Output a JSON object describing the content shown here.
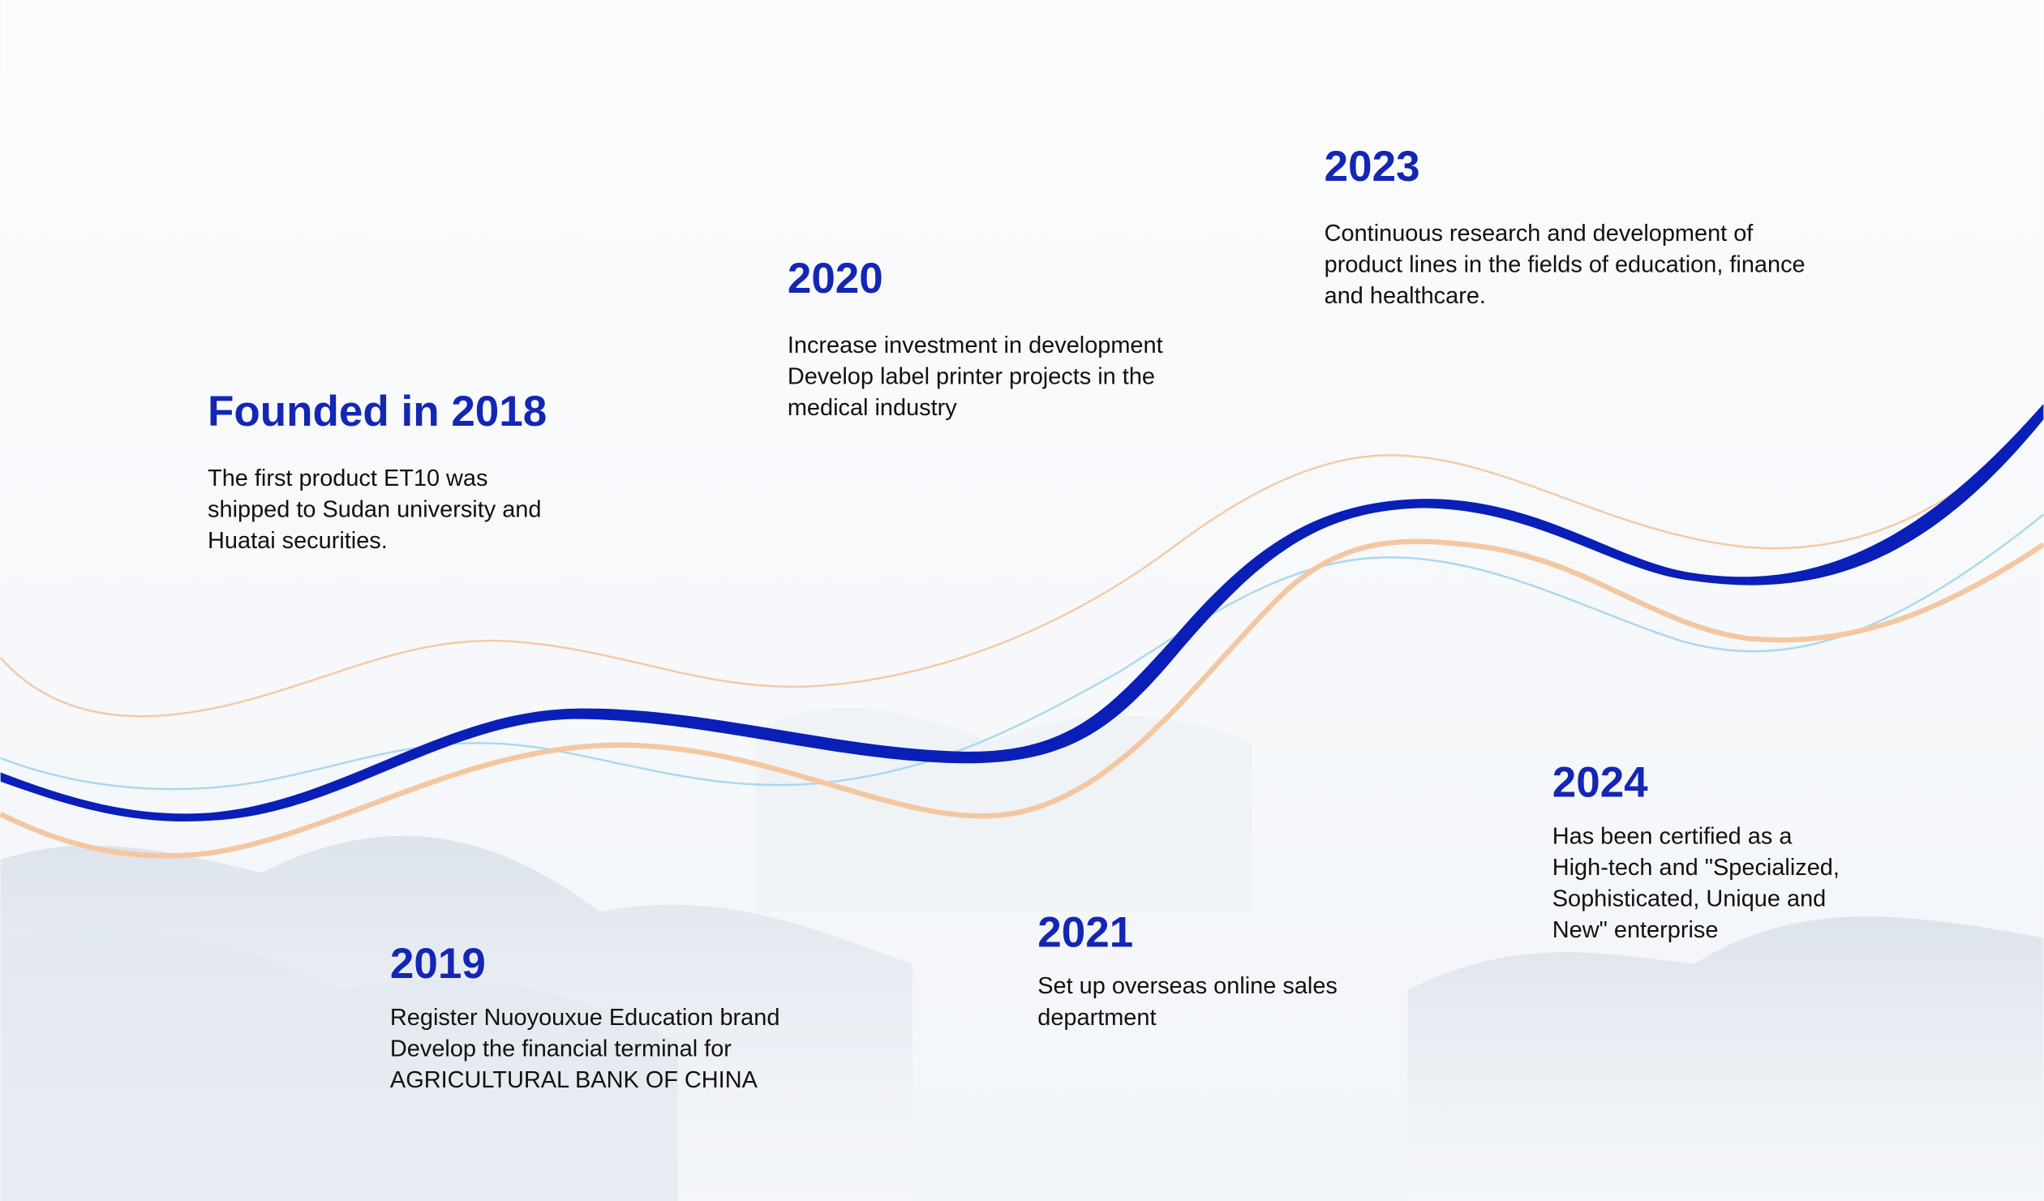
{
  "timeline": [
    {
      "title": "Founded in 2018",
      "lines": [
        "The first product ET10 was",
        "shipped to Sudan university and",
        "Huatai securities."
      ]
    },
    {
      "title": "2019",
      "lines": [
        "Register Nuoyouxue Education brand",
        "Develop the financial terminal for",
        "AGRICULTURAL BANK OF CHINA"
      ]
    },
    {
      "title": "2020",
      "lines": [
        "Increase investment in development",
        "Develop label printer projects in the",
        "medical industry"
      ]
    },
    {
      "title": "2021",
      "lines": [
        "Set up overseas online sales",
        "department"
      ]
    },
    {
      "title": "2023",
      "lines": [
        "Continuous research and development of",
        "product lines in the fields of education, finance",
        "and healthcare."
      ]
    },
    {
      "title": "2024",
      "lines": [
        "Has been certified as a",
        "High-tech and \"Specialized,",
        "Sophisticated, Unique and",
        "New\" enterprise"
      ]
    }
  ]
}
